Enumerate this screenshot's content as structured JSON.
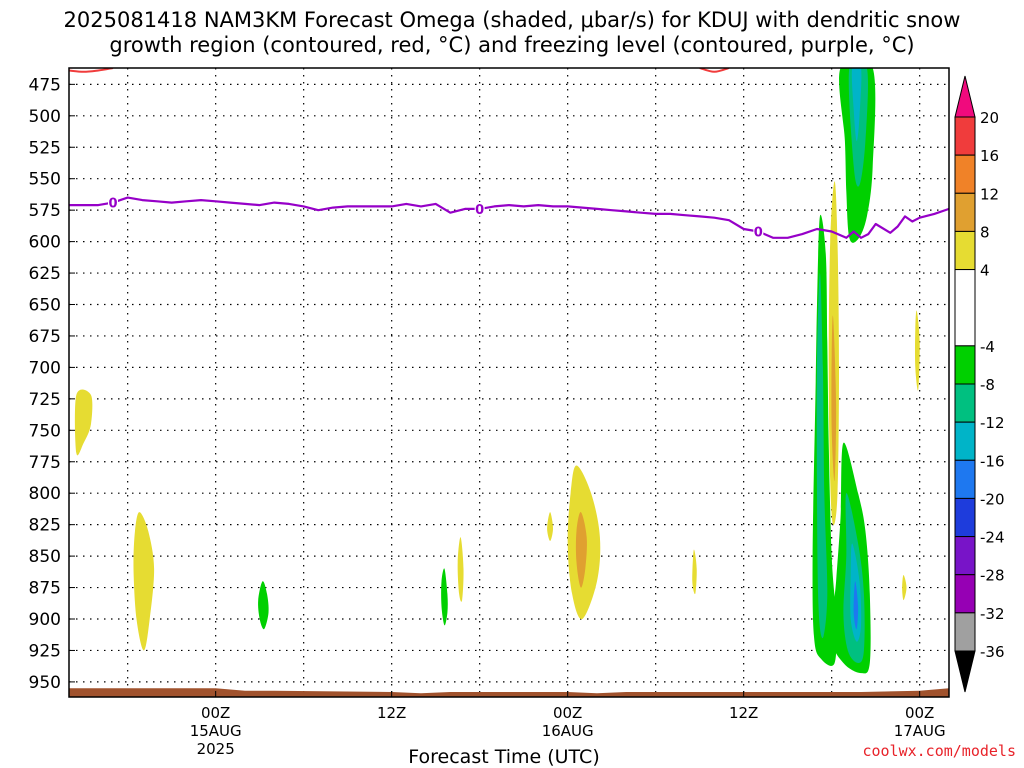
{
  "title": {
    "line1": "2025081418 NAM3KM Forecast Omega (shaded, μbar/s) for KDUJ with dendritic snow",
    "line2": "growth region (contoured, red, °C) and freezing level (contoured, purple, °C)"
  },
  "credit": "coolwx.com/models",
  "chart_data": {
    "type": "heatmap",
    "title": "2025081418 NAM3KM Forecast Omega (shaded, μbar/s) for KDUJ with dendritic snow growth region (contoured, red, °C) and freezing level (contoured, purple, °C)",
    "xlabel": "Forecast Time (UTC)",
    "ylabel": "",
    "x_range_hours": [
      -10,
      50
    ],
    "y_range_hpa": [
      462,
      962
    ],
    "y_ticks": [
      475,
      500,
      525,
      550,
      575,
      600,
      625,
      650,
      675,
      700,
      725,
      750,
      775,
      800,
      825,
      850,
      875,
      900,
      925,
      950
    ],
    "x_ticks": [
      {
        "h": 0,
        "lines": [
          "00Z",
          "15AUG",
          "2025"
        ]
      },
      {
        "h": 12,
        "lines": [
          "12Z"
        ]
      },
      {
        "h": 24,
        "lines": [
          "00Z",
          "16AUG"
        ]
      },
      {
        "h": 36,
        "lines": [
          "12Z"
        ]
      },
      {
        "h": 48,
        "lines": [
          "00Z",
          "17AUG"
        ]
      }
    ],
    "grid": true,
    "colorbar": {
      "label_values": [
        20,
        16,
        12,
        8,
        4,
        -4,
        -8,
        -12,
        -16,
        -20,
        -24,
        -28,
        -32,
        -36
      ],
      "bands": [
        {
          "from": 16,
          "to": 20,
          "color": "#f03c3c"
        },
        {
          "from": 12,
          "to": 16,
          "color": "#f08228"
        },
        {
          "from": 8,
          "to": 12,
          "color": "#e0a030"
        },
        {
          "from": 4,
          "to": 8,
          "color": "#e6dc32"
        },
        {
          "from": -4,
          "to": 4,
          "color": "#ffffff"
        },
        {
          "from": -8,
          "to": -4,
          "color": "#00d000"
        },
        {
          "from": -12,
          "to": -8,
          "color": "#00c080"
        },
        {
          "from": -16,
          "to": -12,
          "color": "#00b4c8"
        },
        {
          "from": -20,
          "to": -16,
          "color": "#1e78f0"
        },
        {
          "from": -24,
          "to": -20,
          "color": "#1e3cdc"
        },
        {
          "from": -28,
          "to": -24,
          "color": "#7814c8"
        },
        {
          "from": -32,
          "to": -28,
          "color": "#9600b4"
        },
        {
          "from": -36,
          "to": -32,
          "color": "#a0a0a0"
        }
      ],
      "top_arrow_color": "#f00a7d",
      "bottom_arrow_color": "#000000"
    },
    "freezing_level": {
      "label": "0",
      "color": "#9600c8",
      "points": [
        [
          -10,
          571
        ],
        [
          -8,
          571
        ],
        [
          -7,
          569
        ],
        [
          -6,
          565
        ],
        [
          -5,
          567
        ],
        [
          -4,
          568
        ],
        [
          -3,
          569
        ],
        [
          -2,
          568
        ],
        [
          -1,
          567
        ],
        [
          0,
          568
        ],
        [
          1,
          569
        ],
        [
          2,
          570
        ],
        [
          3,
          571
        ],
        [
          4,
          569
        ],
        [
          5,
          570
        ],
        [
          6,
          572
        ],
        [
          7,
          575
        ],
        [
          8,
          573
        ],
        [
          9,
          572
        ],
        [
          10,
          572
        ],
        [
          11,
          572
        ],
        [
          12,
          572
        ],
        [
          13,
          570
        ],
        [
          14,
          572
        ],
        [
          15,
          570
        ],
        [
          16,
          577
        ],
        [
          17,
          574
        ],
        [
          18,
          574
        ],
        [
          19,
          572
        ],
        [
          20,
          571
        ],
        [
          21,
          572
        ],
        [
          22,
          571
        ],
        [
          23,
          572
        ],
        [
          24,
          572
        ],
        [
          25,
          573
        ],
        [
          26,
          574
        ],
        [
          27,
          575
        ],
        [
          28,
          576
        ],
        [
          29,
          577
        ],
        [
          30,
          578
        ],
        [
          31,
          578
        ],
        [
          32,
          579
        ],
        [
          33,
          580
        ],
        [
          34,
          581
        ],
        [
          35,
          583
        ],
        [
          36,
          590
        ],
        [
          37,
          592
        ],
        [
          38,
          597
        ],
        [
          39,
          597
        ],
        [
          40,
          594
        ],
        [
          41,
          590
        ],
        [
          42,
          592
        ],
        [
          43,
          597
        ],
        [
          43.5,
          592
        ],
        [
          44,
          597
        ],
        [
          44.5,
          594
        ],
        [
          45,
          586
        ],
        [
          46,
          593
        ],
        [
          46.5,
          588
        ],
        [
          47,
          580
        ],
        [
          47.5,
          584
        ],
        [
          48,
          581
        ],
        [
          49,
          578
        ],
        [
          50,
          574
        ],
        [
          51,
          568
        ],
        [
          52,
          571
        ],
        [
          53,
          576
        ],
        [
          54,
          578
        ]
      ],
      "label_at_h": [
        -7,
        18,
        37
      ]
    },
    "dendritic_region_edge": {
      "color": "#f03c3c",
      "segments": [
        [
          [
            -10,
            464
          ],
          [
            -9,
            465
          ],
          [
            -8,
            464
          ],
          [
            -7,
            462
          ]
        ],
        [
          [
            33,
            462
          ],
          [
            34,
            465
          ],
          [
            35,
            462
          ]
        ]
      ]
    },
    "ground": {
      "color": "#a0522d",
      "top_hpa": [
        [
          -10,
          955
        ],
        [
          0,
          955
        ],
        [
          2,
          957
        ],
        [
          4,
          957
        ],
        [
          12,
          958
        ],
        [
          14,
          959
        ],
        [
          16,
          958
        ],
        [
          24,
          958
        ],
        [
          26,
          959
        ],
        [
          28,
          958
        ],
        [
          36,
          958
        ],
        [
          40,
          958
        ],
        [
          44,
          958
        ],
        [
          48,
          957
        ],
        [
          50,
          955
        ],
        [
          54,
          955
        ]
      ]
    },
    "omega_features": [
      {
        "value": 6,
        "color": "#e6dc32",
        "points": [
          [
            -9.5,
            722
          ],
          [
            -8.5,
            722
          ],
          [
            -8.5,
            745
          ],
          [
            -9,
            760
          ],
          [
            -9.5,
            768
          ]
        ]
      },
      {
        "value": 6,
        "color": "#e6dc32",
        "points": [
          [
            -5.2,
            815
          ],
          [
            -4.6,
            830
          ],
          [
            -4.2,
            860
          ],
          [
            -4.5,
            900
          ],
          [
            -4.9,
            925
          ],
          [
            -5.4,
            900
          ],
          [
            -5.6,
            860
          ],
          [
            -5.5,
            830
          ]
        ]
      },
      {
        "value": -6,
        "color": "#00d000",
        "points": [
          [
            3.2,
            870
          ],
          [
            3.5,
            880
          ],
          [
            3.6,
            895
          ],
          [
            3.3,
            908
          ],
          [
            3.0,
            900
          ],
          [
            2.9,
            885
          ]
        ]
      },
      {
        "value": -6,
        "color": "#00d000",
        "points": [
          [
            15.6,
            860
          ],
          [
            15.8,
            880
          ],
          [
            15.8,
            895
          ],
          [
            15.6,
            905
          ],
          [
            15.4,
            890
          ],
          [
            15.4,
            870
          ]
        ]
      },
      {
        "value": 6,
        "color": "#e6dc32",
        "points": [
          [
            16.7,
            835
          ],
          [
            16.9,
            860
          ],
          [
            16.8,
            885
          ],
          [
            16.6,
            880
          ],
          [
            16.5,
            855
          ]
        ]
      },
      {
        "value": 6,
        "color": "#e6dc32",
        "points": [
          [
            22.8,
            815
          ],
          [
            23.0,
            828
          ],
          [
            22.8,
            838
          ],
          [
            22.6,
            828
          ]
        ]
      },
      {
        "value": 6,
        "color": "#e6dc32",
        "points": [
          [
            24.6,
            778
          ],
          [
            25.6,
            800
          ],
          [
            26.2,
            835
          ],
          [
            26,
            870
          ],
          [
            25,
            900
          ],
          [
            24.3,
            880
          ],
          [
            24,
            840
          ],
          [
            24.2,
            800
          ]
        ]
      },
      {
        "value": 10,
        "color": "#e0a030",
        "points": [
          [
            24.9,
            815
          ],
          [
            25.3,
            835
          ],
          [
            25.2,
            860
          ],
          [
            24.9,
            875
          ],
          [
            24.6,
            855
          ],
          [
            24.6,
            830
          ]
        ]
      },
      {
        "value": 6,
        "color": "#e6dc32",
        "points": [
          [
            32.6,
            845
          ],
          [
            32.8,
            860
          ],
          [
            32.7,
            880
          ],
          [
            32.5,
            870
          ]
        ]
      },
      {
        "value": -6,
        "color": "#00d000",
        "points": [
          [
            42.6,
            462
          ],
          [
            44.8,
            462
          ],
          [
            44.8,
            540
          ],
          [
            44.4,
            580
          ],
          [
            43.8,
            598
          ],
          [
            43.2,
            597
          ],
          [
            43.0,
            560
          ],
          [
            42.9,
            520
          ]
        ]
      },
      {
        "value": -10,
        "color": "#00c080",
        "points": [
          [
            43.2,
            462
          ],
          [
            44.4,
            462
          ],
          [
            44.3,
            520
          ],
          [
            43.9,
            555
          ],
          [
            43.5,
            540
          ]
        ]
      },
      {
        "value": -14,
        "color": "#00b4c8",
        "points": [
          [
            43.4,
            462
          ],
          [
            44.0,
            462
          ],
          [
            43.9,
            500
          ],
          [
            43.7,
            520
          ],
          [
            43.5,
            495
          ]
        ]
      },
      {
        "value": -6,
        "color": "#00d000",
        "points": [
          [
            41.2,
            580
          ],
          [
            41.6,
            610
          ],
          [
            41.7,
            680
          ],
          [
            41.8,
            760
          ],
          [
            42.0,
            850
          ],
          [
            42.3,
            900
          ],
          [
            42.2,
            935
          ],
          [
            41.3,
            932
          ],
          [
            40.8,
            915
          ],
          [
            40.7,
            850
          ],
          [
            40.9,
            720
          ],
          [
            41.0,
            650
          ]
        ]
      },
      {
        "value": -10,
        "color": "#00c080",
        "points": [
          [
            41.2,
            625
          ],
          [
            41.4,
            700
          ],
          [
            41.5,
            800
          ],
          [
            41.7,
            880
          ],
          [
            41.4,
            915
          ],
          [
            41.1,
            890
          ],
          [
            41.0,
            800
          ],
          [
            41.0,
            700
          ]
        ]
      },
      {
        "value": -6,
        "color": "#00d000",
        "points": [
          [
            42.8,
            760
          ],
          [
            43.8,
            800
          ],
          [
            44.3,
            830
          ],
          [
            44.6,
            880
          ],
          [
            44.6,
            935
          ],
          [
            44,
            943
          ],
          [
            42.8,
            935
          ],
          [
            42.0,
            915
          ],
          [
            42.3,
            870
          ],
          [
            42.6,
            820
          ]
        ]
      },
      {
        "value": -10,
        "color": "#00c080",
        "points": [
          [
            43.0,
            800
          ],
          [
            43.8,
            840
          ],
          [
            44.2,
            880
          ],
          [
            44.2,
            925
          ],
          [
            43.8,
            935
          ],
          [
            43.1,
            925
          ],
          [
            42.8,
            895
          ],
          [
            43.0,
            850
          ]
        ]
      },
      {
        "value": -14,
        "color": "#00b4c8",
        "points": [
          [
            43.4,
            840
          ],
          [
            43.9,
            870
          ],
          [
            44.0,
            905
          ],
          [
            43.7,
            918
          ],
          [
            43.3,
            900
          ],
          [
            43.3,
            865
          ]
        ]
      },
      {
        "value": -18,
        "color": "#1e78f0",
        "points": [
          [
            43.6,
            870
          ],
          [
            43.8,
            890
          ],
          [
            43.7,
            908
          ],
          [
            43.5,
            895
          ]
        ]
      },
      {
        "value": 6,
        "color": "#e6dc32",
        "points": [
          [
            42.2,
            552
          ],
          [
            42.4,
            600
          ],
          [
            42.5,
            700
          ],
          [
            42.4,
            800
          ],
          [
            42.1,
            825
          ],
          [
            41.9,
            790
          ],
          [
            41.8,
            700
          ],
          [
            41.9,
            600
          ]
        ]
      },
      {
        "value": 10,
        "color": "#e0a030",
        "points": [
          [
            42.1,
            660
          ],
          [
            42.3,
            730
          ],
          [
            42.2,
            790
          ],
          [
            42.0,
            750
          ],
          [
            42.0,
            690
          ]
        ]
      },
      {
        "value": 6,
        "color": "#e6dc32",
        "points": [
          [
            47.8,
            655
          ],
          [
            48.0,
            680
          ],
          [
            47.9,
            718
          ],
          [
            47.7,
            700
          ],
          [
            47.7,
            670
          ]
        ]
      },
      {
        "value": 6,
        "color": "#e6dc32",
        "points": [
          [
            46.9,
            865
          ],
          [
            47.1,
            875
          ],
          [
            46.9,
            885
          ],
          [
            46.8,
            875
          ]
        ]
      }
    ]
  }
}
